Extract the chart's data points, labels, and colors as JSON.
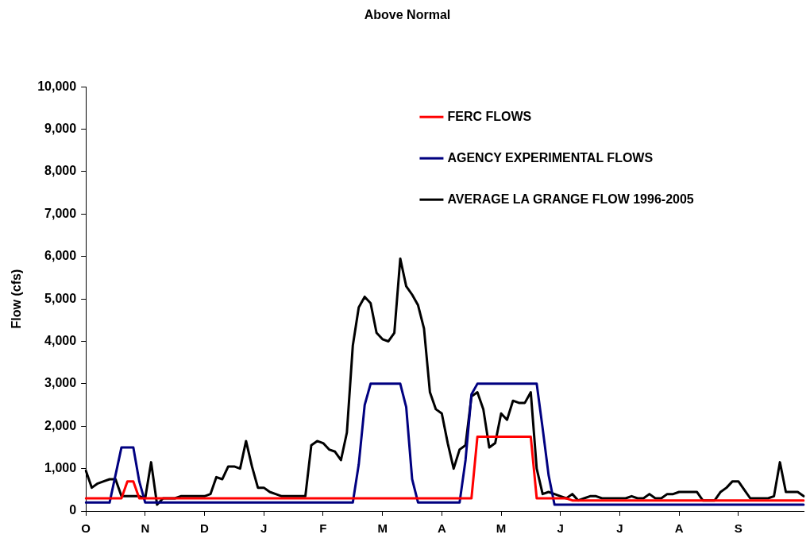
{
  "chart_data": {
    "type": "line",
    "title": "Above Normal",
    "ylabel": "Flow (cfs)",
    "categories": [
      "O",
      null,
      null,
      null,
      null,
      null,
      null,
      null,
      null,
      null,
      "N",
      null,
      null,
      null,
      null,
      null,
      null,
      null,
      null,
      null,
      "D",
      null,
      null,
      null,
      null,
      null,
      null,
      null,
      null,
      null,
      "J",
      null,
      null,
      null,
      null,
      null,
      null,
      null,
      null,
      null,
      "F",
      null,
      null,
      null,
      null,
      null,
      null,
      null,
      null,
      null,
      "M",
      null,
      null,
      null,
      null,
      null,
      null,
      null,
      null,
      null,
      "A",
      null,
      null,
      null,
      null,
      null,
      null,
      null,
      null,
      null,
      "M",
      null,
      null,
      null,
      null,
      null,
      null,
      null,
      null,
      null,
      "J",
      null,
      null,
      null,
      null,
      null,
      null,
      null,
      null,
      null,
      "J",
      null,
      null,
      null,
      null,
      null,
      null,
      null,
      null,
      null,
      "A",
      null,
      null,
      null,
      null,
      null,
      null,
      null,
      null,
      null,
      "S",
      null,
      null,
      null,
      null,
      null,
      null,
      null,
      null,
      null,
      null,
      null
    ],
    "ylim": [
      0,
      10000
    ],
    "yticks": [
      {
        "value": 0,
        "label": "0"
      },
      {
        "value": 1000,
        "label": "1,000"
      },
      {
        "value": 2000,
        "label": "2,000"
      },
      {
        "value": 3000,
        "label": "3,000"
      },
      {
        "value": 4000,
        "label": "4,000"
      },
      {
        "value": 5000,
        "label": "5,000"
      },
      {
        "value": 6000,
        "label": "6,000"
      },
      {
        "value": 7000,
        "label": "7,000"
      },
      {
        "value": 8000,
        "label": "8,000"
      },
      {
        "value": 9000,
        "label": "9,000"
      },
      {
        "value": 10000,
        "label": "10,000"
      }
    ],
    "grid": false,
    "legend": "top right",
    "series": [
      {
        "name": "FERC FLOWS",
        "color": "#ff0000",
        "values": [
          300,
          300,
          300,
          300,
          300,
          300,
          300,
          700,
          700,
          300,
          300,
          300,
          300,
          300,
          300,
          300,
          300,
          300,
          300,
          300,
          300,
          300,
          300,
          300,
          300,
          300,
          300,
          300,
          300,
          300,
          300,
          300,
          300,
          300,
          300,
          300,
          300,
          300,
          300,
          300,
          300,
          300,
          300,
          300,
          300,
          300,
          300,
          300,
          300,
          300,
          300,
          300,
          300,
          300,
          300,
          300,
          300,
          300,
          300,
          300,
          300,
          300,
          300,
          300,
          300,
          300,
          1750,
          1750,
          1750,
          1750,
          1750,
          1750,
          1750,
          1750,
          1750,
          1750,
          300,
          300,
          300,
          300,
          300,
          300,
          250,
          250,
          250,
          250,
          250,
          250,
          250,
          250,
          250,
          250,
          250,
          250,
          250,
          250,
          250,
          250,
          250,
          250,
          250,
          250,
          250,
          250,
          250,
          250,
          250,
          250,
          250,
          250,
          250,
          250,
          250,
          250,
          250,
          250,
          250,
          250,
          250,
          250,
          250,
          250
        ]
      },
      {
        "name": "AGENCY EXPERIMENTAL FLOWS",
        "color": "#000080",
        "values": [
          200,
          200,
          200,
          200,
          200,
          850,
          1500,
          1500,
          1500,
          700,
          200,
          200,
          200,
          200,
          200,
          200,
          200,
          200,
          200,
          200,
          200,
          200,
          200,
          200,
          200,
          200,
          200,
          200,
          200,
          200,
          200,
          200,
          200,
          200,
          200,
          200,
          200,
          200,
          200,
          200,
          200,
          200,
          200,
          200,
          200,
          200,
          1100,
          2500,
          3000,
          3000,
          3000,
          3000,
          3000,
          3000,
          2450,
          750,
          200,
          200,
          200,
          200,
          200,
          200,
          200,
          200,
          1200,
          2750,
          3000,
          3000,
          3000,
          3000,
          3000,
          3000,
          3000,
          3000,
          3000,
          3000,
          3000,
          1950,
          850,
          150,
          150,
          150,
          150,
          150,
          150,
          150,
          150,
          150,
          150,
          150,
          150,
          150,
          150,
          150,
          150,
          150,
          150,
          150,
          150,
          150,
          150,
          150,
          150,
          150,
          150,
          150,
          150,
          150,
          150,
          150,
          150,
          150,
          150,
          150,
          150,
          150,
          150,
          150,
          150,
          150,
          150,
          150
        ]
      },
      {
        "name": "AVERAGE LA GRANGE FLOW 1996-2005",
        "color": "#000000",
        "values": [
          950,
          550,
          650,
          700,
          750,
          750,
          350,
          350,
          350,
          350,
          300,
          1150,
          150,
          300,
          300,
          300,
          350,
          350,
          350,
          350,
          350,
          400,
          800,
          750,
          1050,
          1050,
          1000,
          1650,
          1050,
          550,
          550,
          450,
          400,
          350,
          350,
          350,
          350,
          350,
          1550,
          1650,
          1600,
          1450,
          1400,
          1200,
          1850,
          3900,
          4800,
          5050,
          4900,
          4200,
          4050,
          4000,
          4200,
          5950,
          5300,
          5100,
          4850,
          4300,
          2800,
          2400,
          2300,
          1600,
          1000,
          1450,
          1550,
          2700,
          2800,
          2400,
          1500,
          1600,
          2300,
          2150,
          2600,
          2550,
          2550,
          2800,
          1000,
          400,
          450,
          400,
          350,
          300,
          400,
          250,
          300,
          350,
          350,
          300,
          300,
          300,
          300,
          300,
          350,
          300,
          300,
          400,
          300,
          300,
          400,
          400,
          450,
          450,
          450,
          450,
          250,
          250,
          250,
          450,
          550,
          700,
          700,
          500,
          300,
          300,
          300,
          300,
          350,
          1150,
          450,
          450,
          450,
          350
        ]
      }
    ]
  }
}
